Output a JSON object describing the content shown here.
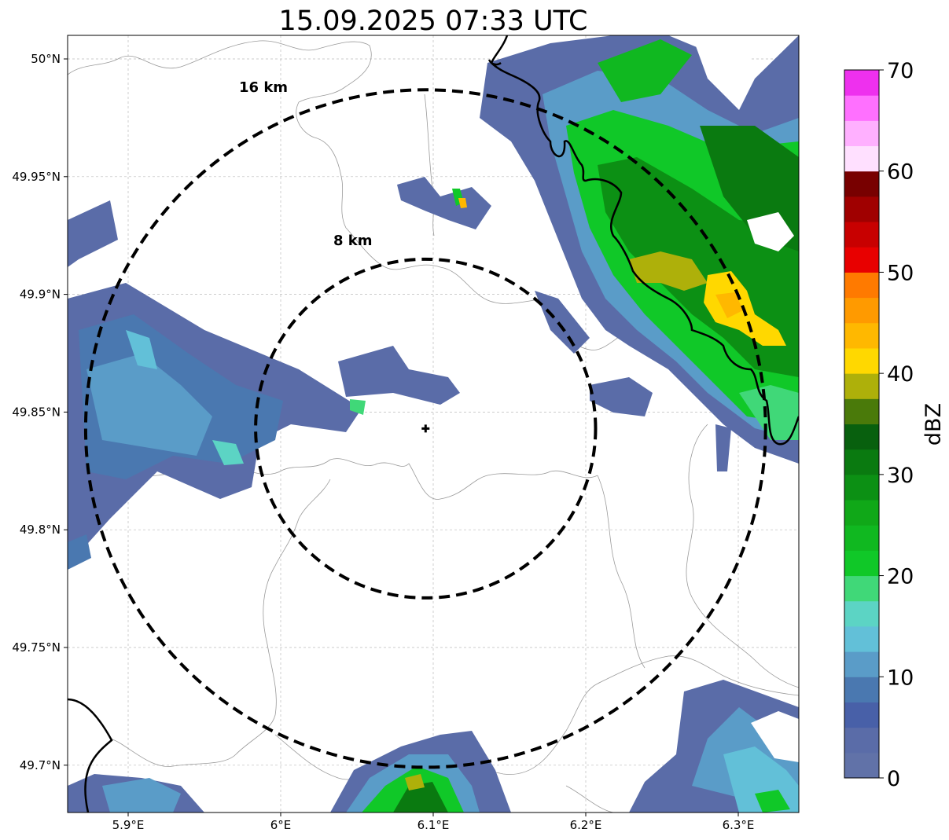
{
  "title": "15.09.2025 07:33 UTC",
  "map": {
    "lon_ticks": [
      {
        "value": 5.9,
        "label": "5.9°E"
      },
      {
        "value": 6.0,
        "label": "6°E"
      },
      {
        "value": 6.1,
        "label": "6.1°E"
      },
      {
        "value": 6.2,
        "label": "6.2°E"
      },
      {
        "value": 6.3,
        "label": "6.3°E"
      }
    ],
    "lat_ticks": [
      {
        "value": 50.0,
        "label": "50°N"
      },
      {
        "value": 49.95,
        "label": "49.95°N"
      },
      {
        "value": 49.9,
        "label": "49.9°N"
      },
      {
        "value": 49.85,
        "label": "49.85°N"
      },
      {
        "value": 49.8,
        "label": "49.8°N"
      },
      {
        "value": 49.75,
        "label": "49.75°N"
      },
      {
        "value": 49.7,
        "label": "49.7°N"
      }
    ],
    "lon_range": [
      5.86,
      6.34
    ],
    "lat_range": [
      49.68,
      50.01
    ],
    "gridlines": true,
    "radar_site": {
      "lon": 6.095,
      "lat": 49.843,
      "marker": "plus-marker"
    },
    "range_rings": [
      {
        "label": "8 km",
        "radius_km": 8
      },
      {
        "label": "16 km",
        "radius_km": 16
      }
    ]
  },
  "colorbar": {
    "label": "dBZ",
    "range": [
      0,
      70
    ],
    "ticks": [
      "0",
      "10",
      "20",
      "30",
      "40",
      "50",
      "60",
      "70"
    ],
    "step_dbz": 2.5,
    "colors": [
      "#6172a8",
      "#5a6ca8",
      "#4860a8",
      "#4a78b0",
      "#5a9cc8",
      "#62c0d8",
      "#5cd4c4",
      "#40d878",
      "#10c828",
      "#10b820",
      "#10a818",
      "#0c9014",
      "#0a7a10",
      "#08600e",
      "#4a7a0a",
      "#aeb00a",
      "#ffd800",
      "#ffb800",
      "#ff9a00",
      "#ff7a00",
      "#e80000",
      "#c80000",
      "#a00000",
      "#780000",
      "#ffe0ff",
      "#ffb0ff",
      "#ff70ff",
      "#ee30ee"
    ]
  },
  "colors": {
    "ring": "#000000",
    "border": "#000000",
    "grid": "#bbbbbb",
    "background": "#ffffff"
  }
}
